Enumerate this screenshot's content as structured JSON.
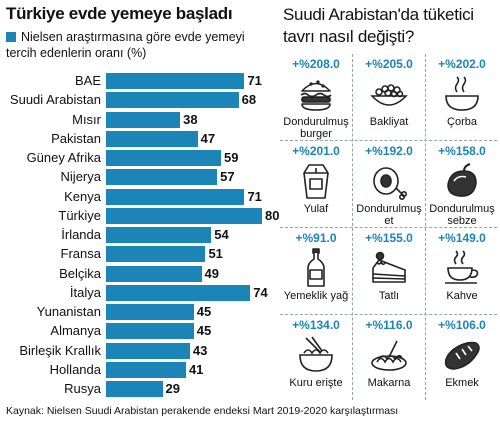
{
  "left_chart": {
    "title": "Türkiye evde yemeye başladı",
    "legend": "Nielsen araştırmasına göre evde yemeyi tercih edenlerin oranı (%)"
  },
  "chart_data": {
    "type": "bar",
    "orientation": "horizontal",
    "categories": [
      "BAE",
      "Suudi Arabistan",
      "Mısır",
      "Pakistan",
      "Güney Afrika",
      "Nijerya",
      "Kenya",
      "Türkiye",
      "İrlanda",
      "Fransa",
      "Belçika",
      "İtalya",
      "Yunanistan",
      "Almanya",
      "Birleşik Krallık",
      "Hollanda",
      "Rusya"
    ],
    "values": [
      71,
      68,
      38,
      47,
      59,
      57,
      71,
      80,
      54,
      51,
      49,
      74,
      45,
      45,
      43,
      41,
      29
    ],
    "highlight": "Türkiye",
    "bar_color": "#1b85b8"
  },
  "right_panel": {
    "title": "Suudi Arabistan'da tüketici tavrı nasıl değişti?",
    "accent_color": "#1b85b8",
    "items": [
      {
        "pct": "+%208.0",
        "label": "Dondurulmuş burger",
        "icon": "burger-icon"
      },
      {
        "pct": "+%205.0",
        "label": "Bakliyat",
        "icon": "legumes-icon"
      },
      {
        "pct": "+%202.0",
        "label": "Çorba",
        "icon": "soup-icon"
      },
      {
        "pct": "+%201.0",
        "label": "Yulaf",
        "icon": "oats-icon"
      },
      {
        "pct": "+%192.0",
        "label": "Dondurulmuş et",
        "icon": "meat-icon"
      },
      {
        "pct": "+%158.0",
        "label": "Dondurulmuş sebze",
        "icon": "vegetable-icon"
      },
      {
        "pct": "+%91.0",
        "label": "Yemeklik yağ",
        "icon": "oil-bottle-icon"
      },
      {
        "pct": "+%155.0",
        "label": "Tatlı",
        "icon": "cake-icon"
      },
      {
        "pct": "+%149.0",
        "label": "Kahve",
        "icon": "coffee-icon"
      },
      {
        "pct": "+%134.0",
        "label": "Kuru erişte",
        "icon": "noodle-bowl-icon"
      },
      {
        "pct": "+%116.0",
        "label": "Makarna",
        "icon": "pasta-icon"
      },
      {
        "pct": "+%106.0",
        "label": "Ekmek",
        "icon": "bread-icon"
      }
    ]
  },
  "source": "Kaynak: Nielsen Suudi Arabistan perakende endeksi Mart 2019-2020 karşılaştırması"
}
